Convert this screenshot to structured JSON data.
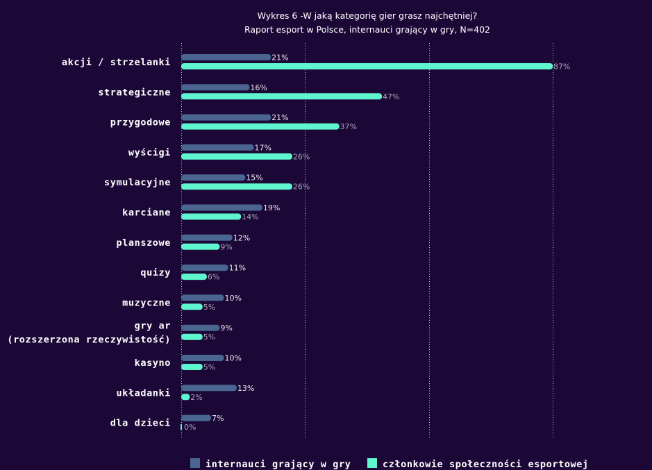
{
  "chart_data": {
    "type": "bar",
    "orientation": "horizontal",
    "title": "Wykres 6 -W jaką kategorię gier grasz najchętniej?",
    "subtitle": "Raport esport w Polsce, internauci grający w gry, N=402",
    "categories": [
      "akcji / strzelanki",
      "strategiczne",
      "przygodowe",
      "wyścigi",
      "symulacyjne",
      "karciane",
      "planszowe",
      "quizy",
      "muzyczne",
      "gry ar\n(rozszerzona rzeczywistość)",
      "kasyno",
      "układanki",
      "dla dzieci"
    ],
    "series": [
      {
        "name": "internauci grający w gry",
        "color": "#4a6690",
        "values": [
          21,
          16,
          21,
          17,
          15,
          19,
          12,
          11,
          10,
          9,
          10,
          13,
          7
        ]
      },
      {
        "name": "członkowie społeczności esportowej",
        "color": "#5ff5cf",
        "values": [
          87,
          47,
          37,
          26,
          26,
          14,
          9,
          6,
          5,
          5,
          5,
          2,
          0
        ]
      }
    ],
    "value_suffix": "%",
    "xlim": [
      0,
      88
    ],
    "grid": "vertical dotted",
    "legend": "bottom",
    "background": "#1c0837"
  }
}
